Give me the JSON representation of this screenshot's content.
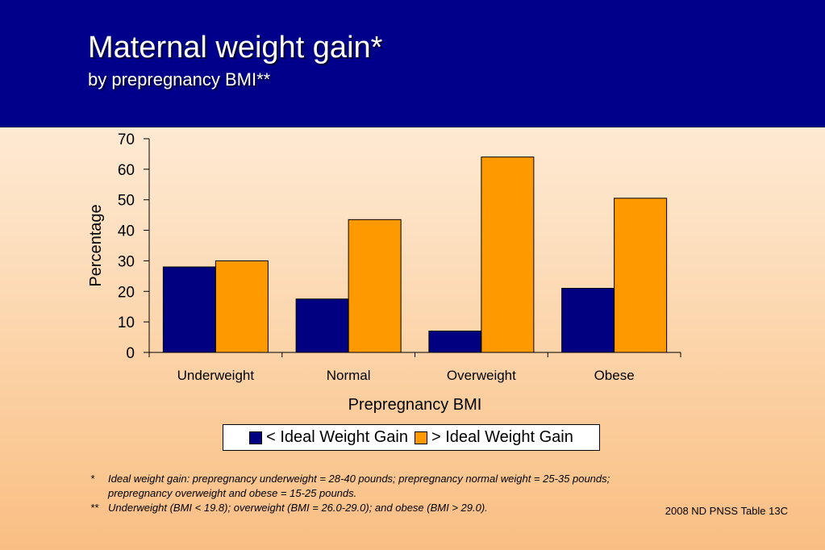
{
  "header": {
    "title": "Maternal weight gain*",
    "subtitle": "by prepregnancy BMI**"
  },
  "colors": {
    "header_bg": "#00008b",
    "series_below": "#000080",
    "series_above": "#ff9900"
  },
  "chart_data": {
    "type": "bar",
    "title": "",
    "xlabel": "Prepregnancy BMI",
    "ylabel": "Percentage",
    "ylim": [
      0,
      70
    ],
    "yticks": [
      0,
      10,
      20,
      30,
      40,
      50,
      60,
      70
    ],
    "grid": false,
    "legend_position": "bottom",
    "categories": [
      "Underweight",
      "Normal",
      "Overweight",
      "Obese"
    ],
    "series": [
      {
        "name": "< Ideal Weight Gain",
        "color": "#000080",
        "values": [
          28,
          17.5,
          7,
          21
        ]
      },
      {
        "name": "> Ideal Weight Gain",
        "color": "#ff9900",
        "values": [
          30,
          43.5,
          64,
          50.5
        ]
      }
    ]
  },
  "legend": {
    "items": [
      "< Ideal Weight Gain",
      "> Ideal Weight Gain"
    ]
  },
  "footnotes": {
    "note1_mark": "*",
    "note1_text": "Ideal weight gain: prepregnancy underweight = 28-40 pounds; prepregnancy normal weight = 25-35 pounds; prepregnancy overweight and obese = 15-25 pounds.",
    "note2_mark": "**",
    "note2_text": "Underweight (BMI < 19.8); overweight (BMI = 26.0-29.0); and obese (BMI > 29.0)."
  },
  "source": "2008 ND PNSS Table 13C"
}
